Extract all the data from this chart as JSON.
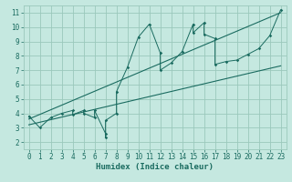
{
  "title": "",
  "xlabel": "Humidex (Indice chaleur)",
  "ylabel": "",
  "xlim": [
    -0.5,
    23.5
  ],
  "ylim": [
    1.5,
    11.5
  ],
  "xticks": [
    0,
    1,
    2,
    3,
    4,
    5,
    6,
    7,
    8,
    9,
    10,
    11,
    12,
    13,
    14,
    15,
    16,
    17,
    18,
    19,
    20,
    21,
    22,
    23
  ],
  "yticks": [
    2,
    3,
    4,
    5,
    6,
    7,
    8,
    9,
    10,
    11
  ],
  "background_color": "#c5e8e0",
  "grid_color": "#9ac8bc",
  "line_color": "#1a6b60",
  "data_x": [
    0,
    1,
    2,
    3,
    4,
    4,
    5,
    5,
    6,
    6,
    7,
    7,
    7,
    8,
    8,
    9,
    10,
    11,
    12,
    12,
    13,
    14,
    15,
    15,
    16,
    16,
    17,
    17,
    18,
    19,
    20,
    21,
    22,
    23
  ],
  "data_y": [
    3.8,
    3.0,
    3.7,
    4.0,
    4.2,
    3.9,
    4.2,
    4.0,
    3.7,
    4.2,
    2.6,
    2.3,
    3.5,
    4.0,
    5.5,
    7.2,
    9.3,
    10.2,
    8.2,
    7.0,
    7.5,
    8.3,
    10.2,
    9.6,
    10.3,
    9.5,
    9.2,
    7.4,
    7.6,
    7.7,
    8.1,
    8.5,
    9.4,
    11.2
  ],
  "line1_x": [
    0,
    23
  ],
  "line1_y": [
    3.6,
    11.0
  ],
  "line2_x": [
    0,
    23
  ],
  "line2_y": [
    3.2,
    7.3
  ],
  "tick_fontsize": 5.5,
  "label_fontsize": 6.5
}
